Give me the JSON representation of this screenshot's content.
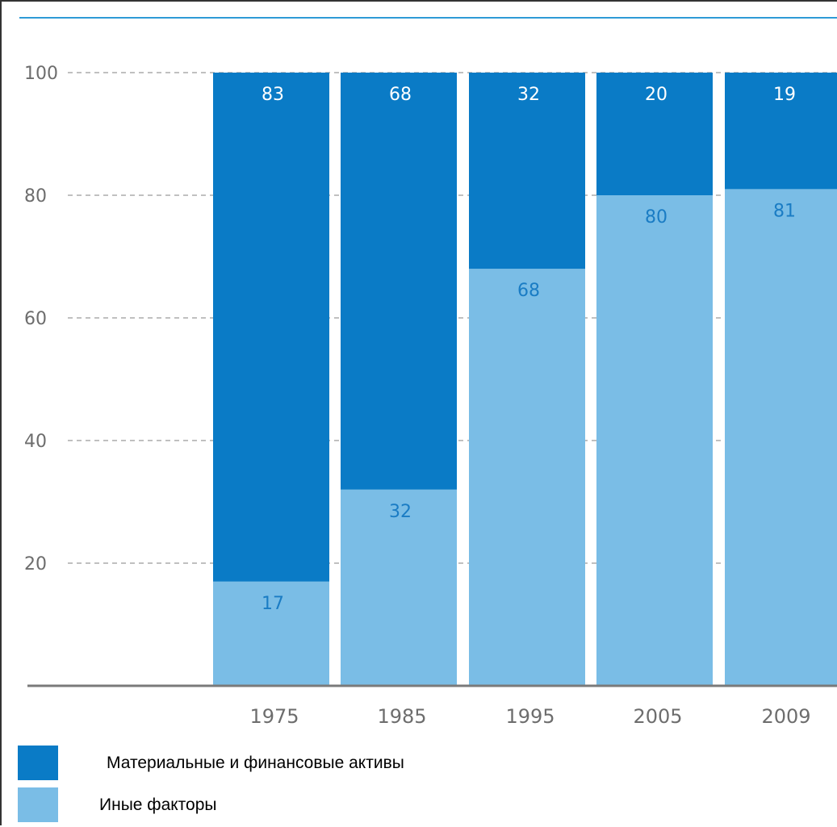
{
  "chart_data": {
    "type": "bar",
    "stacked": true,
    "categories": [
      "1975",
      "1985",
      "1995",
      "2005",
      "2009"
    ],
    "series": [
      {
        "name": "Иные факторы",
        "values": [
          17,
          32,
          68,
          80,
          81
        ],
        "color": "#7abde6",
        "label_color": "#1a7cc4"
      },
      {
        "name": "Материальные и финансовые активы",
        "values": [
          83,
          68,
          32,
          20,
          19
        ],
        "color": "#0a7bc6",
        "label_color": "#ffffff"
      }
    ],
    "ylim": [
      0,
      100
    ],
    "yticks": [
      20,
      40,
      60,
      80,
      100
    ],
    "grid": "dashed-horizontal",
    "legend_position": "bottom-left",
    "title": "",
    "xlabel": "",
    "ylabel": ""
  },
  "legend": {
    "items": [
      {
        "label": "Материальные и финансовые активы",
        "color": "#0a7bc6"
      },
      {
        "label": "Иные факторы",
        "color": "#7abde6"
      }
    ]
  },
  "colors": {
    "top_rule": "#2e9ad6",
    "axis": "#7a7a7a",
    "grid": "#9a9a9a"
  }
}
